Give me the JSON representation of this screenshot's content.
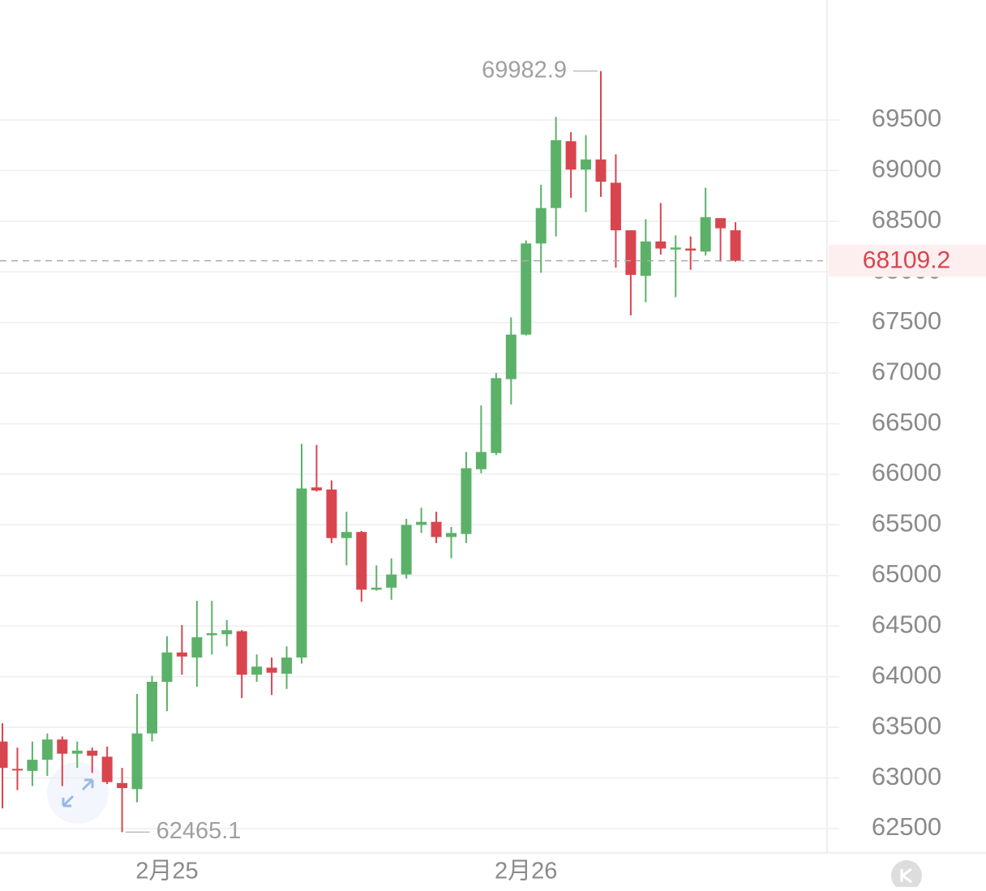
{
  "chart_data": {
    "type": "candlestick",
    "categories": [
      null,
      null,
      null,
      null,
      null,
      null,
      null,
      null,
      null,
      null,
      null,
      "2月25",
      null,
      null,
      null,
      null,
      null,
      null,
      null,
      null,
      null,
      null,
      null,
      null,
      null,
      null,
      null,
      null,
      null,
      null,
      null,
      null,
      null,
      null,
      null,
      "2月26",
      null,
      null,
      null,
      null,
      null,
      null,
      null,
      null,
      null,
      null,
      null,
      null,
      null,
      null
    ],
    "open": [
      63360,
      63090,
      63070,
      63180,
      63380,
      63240,
      63270,
      63210,
      62950,
      62890,
      63440,
      63950,
      64240,
      64190,
      64410,
      64420,
      64450,
      64020,
      64090,
      64030,
      64190,
      65870,
      65850,
      65370,
      65430,
      64860,
      64880,
      65010,
      65500,
      65530,
      65380,
      65410,
      66050,
      66210,
      66940,
      67380,
      68280,
      68630,
      69290,
      69010,
      69110,
      68880,
      68410,
      67960,
      68300,
      68220,
      68230,
      68200,
      68530,
      68410
    ],
    "high": [
      63540,
      63300,
      63360,
      63440,
      63410,
      63360,
      63300,
      63310,
      63100,
      63830,
      64010,
      64400,
      64510,
      64750,
      64750,
      64560,
      64460,
      64220,
      64190,
      64300,
      66300,
      66290,
      65940,
      65630,
      65440,
      65100,
      65170,
      65560,
      65670,
      65630,
      65480,
      66220,
      66680,
      67000,
      67550,
      68310,
      68860,
      69530,
      69380,
      69350,
      69982.9,
      69160,
      68410,
      68520,
      68680,
      68360,
      68350,
      68830,
      68530,
      68490
    ],
    "low": [
      62700,
      62880,
      62920,
      63020,
      62920,
      63100,
      63050,
      62940,
      62465.1,
      62760,
      63360,
      63660,
      64020,
      63900,
      64220,
      64300,
      63790,
      63950,
      63820,
      63880,
      64130,
      65830,
      65320,
      65100,
      64740,
      64850,
      64760,
      64970,
      65420,
      65320,
      65170,
      65320,
      66010,
      66190,
      66690,
      67370,
      67990,
      68350,
      68730,
      68590,
      68740,
      68040,
      67570,
      67700,
      68170,
      67750,
      68020,
      68160,
      68100,
      68100
    ],
    "close": [
      63100,
      63080,
      63180,
      63380,
      63240,
      63270,
      63220,
      62960,
      62900,
      63440,
      63950,
      64240,
      64200,
      64390,
      64430,
      64460,
      64020,
      64100,
      64040,
      64190,
      65860,
      65840,
      65370,
      65430,
      64860,
      64880,
      65010,
      65500,
      65530,
      65380,
      65420,
      66060,
      66220,
      66950,
      67380,
      68280,
      68630,
      69300,
      69010,
      69110,
      68890,
      68410,
      67970,
      68300,
      68230,
      68240,
      68210,
      68540,
      68430,
      68109.2
    ],
    "up_color": "#5cb169",
    "down_color": "#d9454f",
    "ylim": [
      62260,
      70685
    ],
    "yticks": [
      62500,
      63000,
      63500,
      64000,
      64500,
      65000,
      65500,
      66000,
      66500,
      67000,
      67500,
      68000,
      68500,
      69000,
      69500
    ],
    "grid": true
  }
}
